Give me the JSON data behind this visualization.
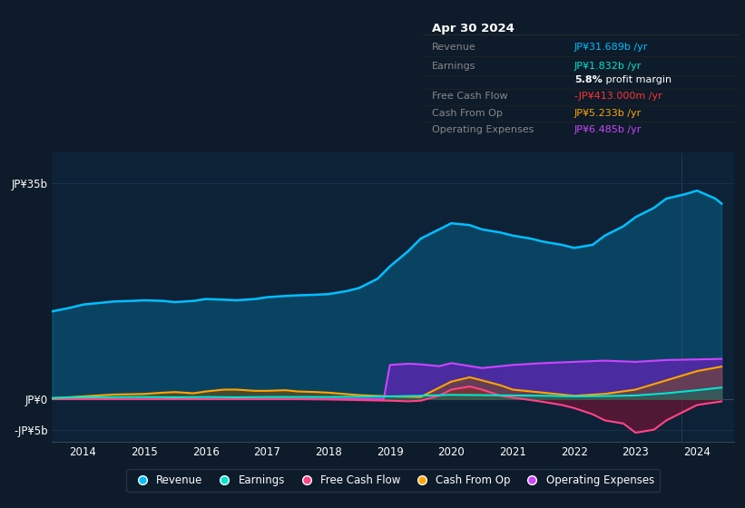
{
  "background_color": "#0d1b2a",
  "plot_bg_color": "#0d2137",
  "grid_color": "#1e3a52",
  "title_date": "Apr 30 2024",
  "tooltip": {
    "Revenue": {
      "label": "Revenue",
      "value": "JP¥31.689b /yr",
      "color": "#00bfff"
    },
    "Earnings": {
      "label": "Earnings",
      "value": "JP¥1.832b /yr",
      "color": "#00e5cc"
    },
    "profit_margin": {
      "label": "",
      "value": "5.8% profit margin",
      "color": "#ffffff",
      "bold_part": "5.8%"
    },
    "Free Cash Flow": {
      "label": "Free Cash Flow",
      "value": "-JP¥413.000m /yr",
      "color": "#ff3333"
    },
    "Cash From Op": {
      "label": "Cash From Op",
      "value": "JP¥5.233b /yr",
      "color": "#ffa500"
    },
    "Operating Expenses": {
      "label": "Operating Expenses",
      "value": "JP¥6.485b /yr",
      "color": "#cc44ff"
    }
  },
  "ylim": [
    -7,
    40
  ],
  "yticks": [
    -5,
    0,
    35
  ],
  "ytick_labels": [
    "-JP¥5b",
    "JP¥0",
    "JP¥35b"
  ],
  "xlim": [
    2013.5,
    2024.6
  ],
  "xtick_positions": [
    2014,
    2015,
    2016,
    2017,
    2018,
    2019,
    2020,
    2021,
    2022,
    2023,
    2024
  ],
  "xtick_labels": [
    "2014",
    "2015",
    "2016",
    "2017",
    "2018",
    "2019",
    "2020",
    "2021",
    "2022",
    "2023",
    "2024"
  ],
  "legend": [
    {
      "label": "Revenue",
      "color": "#00bfff"
    },
    {
      "label": "Earnings",
      "color": "#00e5cc"
    },
    {
      "label": "Free Cash Flow",
      "color": "#ff4488"
    },
    {
      "label": "Cash From Op",
      "color": "#ffa500"
    },
    {
      "label": "Operating Expenses",
      "color": "#cc44ff"
    }
  ],
  "revenue": {
    "x": [
      2013.5,
      2013.8,
      2014.0,
      2014.3,
      2014.5,
      2014.8,
      2015.0,
      2015.3,
      2015.5,
      2015.8,
      2016.0,
      2016.3,
      2016.5,
      2016.8,
      2017.0,
      2017.3,
      2017.5,
      2017.8,
      2018.0,
      2018.3,
      2018.5,
      2018.8,
      2019.0,
      2019.3,
      2019.5,
      2019.8,
      2020.0,
      2020.3,
      2020.5,
      2020.8,
      2021.0,
      2021.3,
      2021.5,
      2021.8,
      2022.0,
      2022.3,
      2022.5,
      2022.8,
      2023.0,
      2023.3,
      2023.5,
      2023.8,
      2024.0,
      2024.3,
      2024.4
    ],
    "y": [
      14.2,
      14.8,
      15.3,
      15.6,
      15.8,
      15.9,
      16.0,
      15.9,
      15.7,
      15.9,
      16.2,
      16.1,
      16.0,
      16.2,
      16.5,
      16.7,
      16.8,
      16.9,
      17.0,
      17.5,
      18.0,
      19.5,
      21.5,
      24.0,
      26.0,
      27.5,
      28.5,
      28.2,
      27.5,
      27.0,
      26.5,
      26.0,
      25.5,
      25.0,
      24.5,
      25.0,
      26.5,
      28.0,
      29.5,
      31.0,
      32.5,
      33.2,
      33.8,
      32.5,
      31.689
    ]
  },
  "earnings": {
    "x": [
      2013.5,
      2014.0,
      2014.5,
      2015.0,
      2015.5,
      2016.0,
      2016.5,
      2017.0,
      2017.5,
      2018.0,
      2018.5,
      2019.0,
      2019.5,
      2020.0,
      2020.5,
      2021.0,
      2021.5,
      2022.0,
      2022.5,
      2023.0,
      2023.5,
      2024.0,
      2024.4
    ],
    "y": [
      0.15,
      0.25,
      0.28,
      0.3,
      0.25,
      0.3,
      0.25,
      0.3,
      0.3,
      0.3,
      0.35,
      0.4,
      0.5,
      0.65,
      0.6,
      0.55,
      0.5,
      0.4,
      0.45,
      0.55,
      0.9,
      1.4,
      1.832
    ]
  },
  "free_cash_flow": {
    "x": [
      2013.5,
      2014.0,
      2014.5,
      2015.0,
      2015.5,
      2016.0,
      2016.5,
      2017.0,
      2017.5,
      2018.0,
      2018.5,
      2019.0,
      2019.3,
      2019.5,
      2019.8,
      2020.0,
      2020.3,
      2020.5,
      2020.8,
      2021.0,
      2021.3,
      2021.5,
      2021.8,
      2022.0,
      2022.3,
      2022.5,
      2022.8,
      2023.0,
      2023.3,
      2023.5,
      2023.8,
      2024.0,
      2024.4
    ],
    "y": [
      -0.05,
      -0.05,
      -0.05,
      -0.05,
      -0.05,
      -0.05,
      -0.05,
      -0.05,
      -0.05,
      -0.1,
      -0.2,
      -0.3,
      -0.4,
      -0.3,
      0.5,
      1.5,
      2.0,
      1.5,
      0.5,
      0.2,
      -0.2,
      -0.5,
      -1.0,
      -1.5,
      -2.5,
      -3.5,
      -4.0,
      -5.5,
      -5.0,
      -3.5,
      -2.0,
      -1.0,
      -0.413
    ]
  },
  "cash_from_op": {
    "x": [
      2013.5,
      2014.0,
      2014.5,
      2015.0,
      2015.3,
      2015.5,
      2015.8,
      2016.0,
      2016.3,
      2016.5,
      2016.8,
      2017.0,
      2017.3,
      2017.5,
      2017.8,
      2018.0,
      2018.5,
      2019.0,
      2019.5,
      2020.0,
      2020.3,
      2020.5,
      2020.8,
      2021.0,
      2021.5,
      2022.0,
      2022.5,
      2023.0,
      2023.5,
      2024.0,
      2024.4
    ],
    "y": [
      0.1,
      0.4,
      0.7,
      0.8,
      1.0,
      1.1,
      0.9,
      1.2,
      1.5,
      1.5,
      1.3,
      1.3,
      1.4,
      1.2,
      1.1,
      1.0,
      0.6,
      0.4,
      0.3,
      2.8,
      3.5,
      3.0,
      2.2,
      1.5,
      1.0,
      0.5,
      0.8,
      1.5,
      3.0,
      4.5,
      5.233
    ]
  },
  "operating_expenses": {
    "x": [
      2013.5,
      2014.0,
      2014.5,
      2015.0,
      2015.5,
      2016.0,
      2016.5,
      2017.0,
      2017.5,
      2018.0,
      2018.5,
      2018.9,
      2019.0,
      2019.3,
      2019.5,
      2019.8,
      2020.0,
      2020.5,
      2021.0,
      2021.5,
      2022.0,
      2022.5,
      2023.0,
      2023.5,
      2024.0,
      2024.4
    ],
    "y": [
      0.0,
      0.0,
      0.0,
      0.0,
      0.0,
      0.0,
      0.0,
      0.0,
      0.0,
      0.0,
      0.0,
      0.0,
      5.5,
      5.7,
      5.6,
      5.3,
      5.8,
      5.0,
      5.5,
      5.8,
      6.0,
      6.2,
      6.0,
      6.3,
      6.4,
      6.485
    ]
  }
}
